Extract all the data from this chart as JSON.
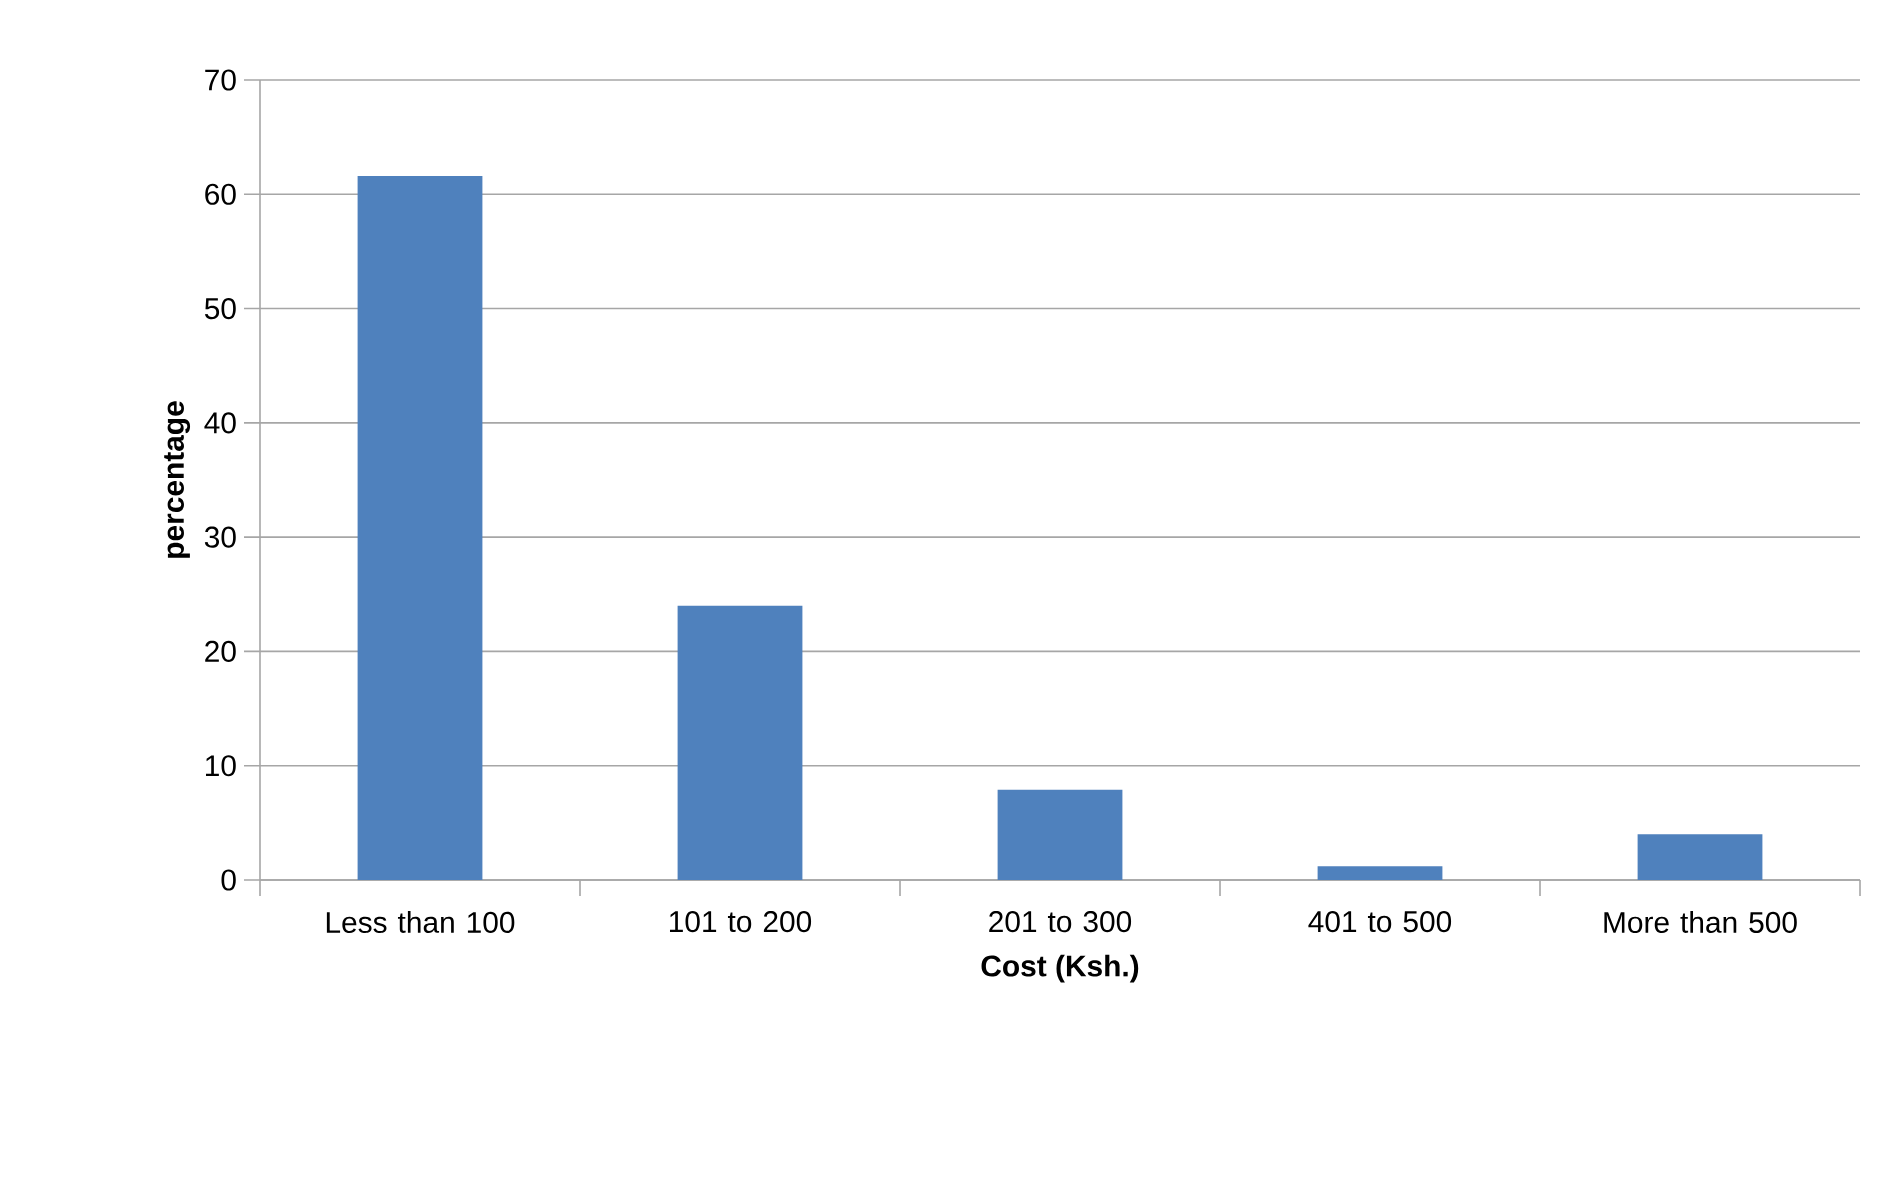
{
  "chart_data": {
    "type": "bar",
    "xlabel": "Cost (Ksh.)",
    "ylabel": "percentage",
    "categories": [
      "Less than 100",
      "101 to 200",
      "201 to 300",
      "401 to 500",
      "More than 500"
    ],
    "values": [
      61.6,
      24.0,
      7.9,
      1.2,
      4.0
    ],
    "color": "#4f81bd",
    "ylim": [
      0,
      70
    ],
    "yticks": [
      0,
      10,
      20,
      30,
      40,
      50,
      60,
      70
    ],
    "grid": "y"
  }
}
